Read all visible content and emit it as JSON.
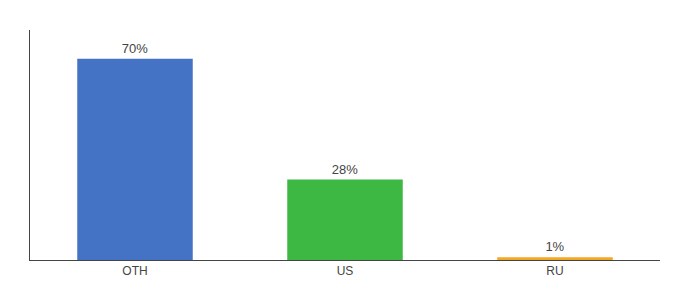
{
  "chart_data": {
    "type": "bar",
    "categories": [
      "OTH",
      "US",
      "RU"
    ],
    "values": [
      70,
      28,
      1
    ],
    "value_labels": [
      "70%",
      "28%",
      "1%"
    ],
    "colors": [
      "#4472c4",
      "#3cb843",
      "#f5a623"
    ],
    "data_labels": true,
    "ylim": [
      0,
      80
    ],
    "grid": false,
    "tick_labels": "x"
  }
}
